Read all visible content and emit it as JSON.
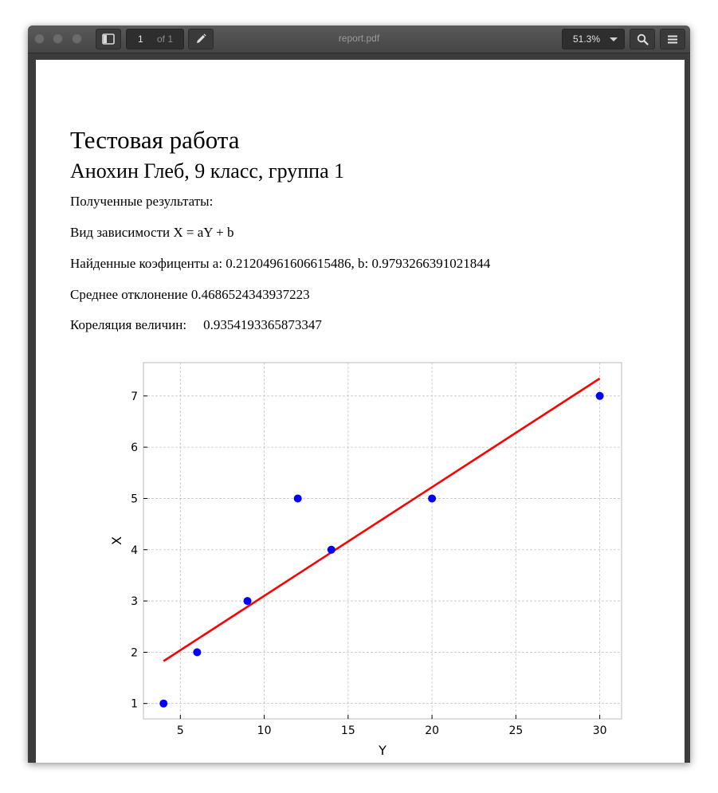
{
  "viewer": {
    "title": "report.pdf",
    "page_current": "1",
    "page_total": "of 1",
    "zoom": "51.3%",
    "icons": {
      "sidebar": "sidebar-toggle-icon",
      "edit": "pencil-icon",
      "search": "search-icon",
      "menu": "hamburger-icon"
    }
  },
  "document": {
    "title": "Тестовая работа",
    "subtitle": "Анохин Глеб, 9 класс, группа 1",
    "lines": [
      "Полученные результаты:",
      "Вид зависимости X = aY + b",
      "Найденные коэфиценты a: 0.21204961606615486, b: 0.9793266391021844",
      "Среднее отклонение 0.4686524343937223"
    ],
    "correlation_label": "Кореляция величин:",
    "correlation_value": "0.9354193365873347"
  },
  "chart_data": {
    "type": "scatter",
    "xlabel": "Y",
    "ylabel": "X",
    "xlim": [
      2.8,
      31.3
    ],
    "ylim": [
      0.7,
      7.65
    ],
    "xticks": [
      5,
      10,
      15,
      20,
      25,
      30
    ],
    "yticks": [
      1,
      2,
      3,
      4,
      5,
      6,
      7
    ],
    "grid": true,
    "points": {
      "x": [
        4,
        6,
        9,
        12,
        14,
        20,
        30
      ],
      "y": [
        1,
        2,
        3,
        5,
        4,
        5,
        7
      ],
      "color": "#0000ff"
    },
    "fit_line": {
      "slope": 0.21204961606615486,
      "intercept": 0.9793266391021844,
      "x_range": [
        4,
        30
      ],
      "color": "#ff0000"
    }
  }
}
